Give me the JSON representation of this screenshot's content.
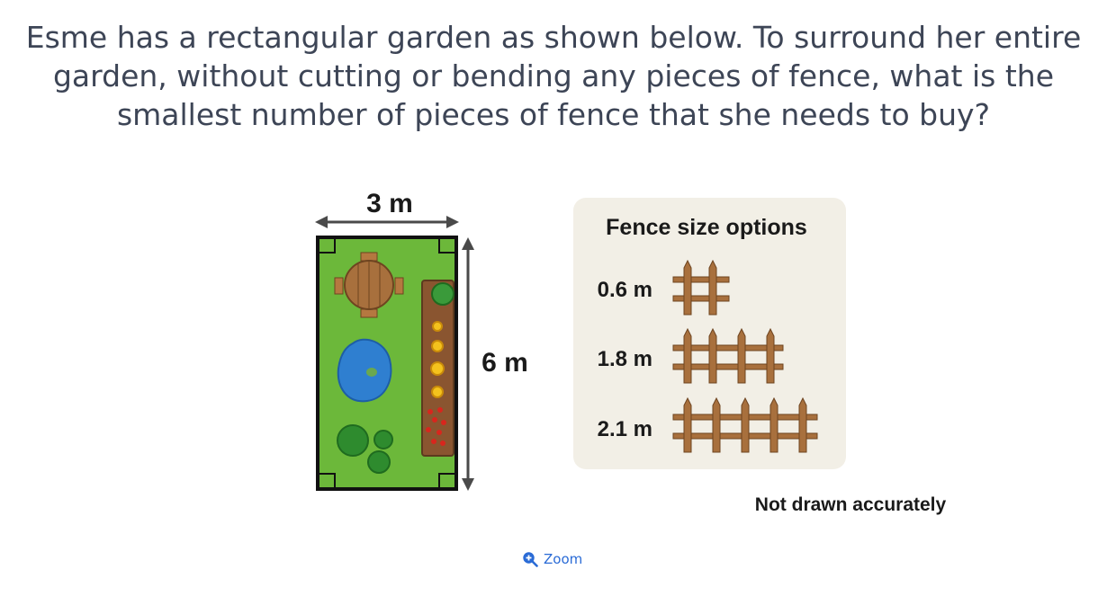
{
  "question": {
    "lines": [
      "Esme has a rectangular garden as shown below. To surround her entire",
      "garden, without cutting or bending any pieces of fence, what is the",
      "smallest number of pieces of fence that she needs to buy?"
    ]
  },
  "garden": {
    "width_label": "3 m",
    "height_label": "6 m"
  },
  "fence_panel": {
    "title": "Fence size options",
    "options": [
      {
        "label": "0.6 m",
        "posts": 2
      },
      {
        "label": "1.8 m",
        "posts": 4
      },
      {
        "label": "2.1 m",
        "posts": 5
      }
    ]
  },
  "note": "Not drawn accurately",
  "zoom": {
    "label": "Zoom"
  },
  "colors": {
    "question_text": "#3d4556",
    "grass": "#6cb83a",
    "pond": "#2f7fd0",
    "wood": "#a8703d",
    "panel_bg": "#f2efe6",
    "zoom_link": "#2a6bd6"
  }
}
